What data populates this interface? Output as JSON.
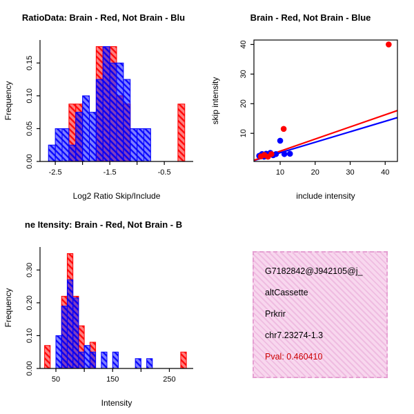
{
  "colors": {
    "red": "#ff0000",
    "blue": "#0000ff",
    "axis": "#000000",
    "pval_red": "#cc0000",
    "info_box_bg_light": "#f8d7ee",
    "info_box_bg_dark": "#efbce1",
    "info_box_border": "#e59fd2"
  },
  "chart_data": [
    {
      "type": "histogram",
      "title": "RatioData: Brain - Red, Not Brain - Blu",
      "xlabel": "Log2 Ratio Skip/Include",
      "ylabel": "Frequency",
      "xlim": [
        -2.78,
        0.03
      ],
      "ylim": [
        0,
        0.185
      ],
      "bin_width": 0.125,
      "xticks": [
        {
          "v": -2.5,
          "label": "-2.5"
        },
        {
          "v": -2.0,
          "label": ""
        },
        {
          "v": -1.5,
          "label": "-1.5"
        },
        {
          "v": -1.0,
          "label": ""
        },
        {
          "v": -0.5,
          "label": "-0.5"
        }
      ],
      "yticks": [
        {
          "v": 0,
          "label": "0.00"
        },
        {
          "v": 0.05,
          "label": "0.05"
        },
        {
          "v": 0.1,
          "label": "0.10"
        },
        {
          "v": 0.15,
          "label": "0.15"
        }
      ],
      "series": [
        {
          "name": "brain-red",
          "color_key": "red",
          "bars": [
            [
              -2.25,
              0.0875
            ],
            [
              -2.125,
              0.0875
            ],
            [
              -1.75,
              0.175
            ],
            [
              -1.625,
              0.175
            ],
            [
              -1.5,
              0.175
            ],
            [
              -1.375,
              0.1
            ],
            [
              -1.25,
              0.0875
            ],
            [
              -0.25,
              0.0875
            ]
          ]
        },
        {
          "name": "not-brain-blue",
          "color_key": "blue",
          "bars": [
            [
              -2.625,
              0.025
            ],
            [
              -2.5,
              0.05
            ],
            [
              -2.375,
              0.05
            ],
            [
              -2.25,
              0.025
            ],
            [
              -2.125,
              0.075
            ],
            [
              -2.0,
              0.1
            ],
            [
              -1.875,
              0.075
            ],
            [
              -1.75,
              0.125
            ],
            [
              -1.625,
              0.175
            ],
            [
              -1.5,
              0.15
            ],
            [
              -1.375,
              0.15
            ],
            [
              -1.25,
              0.125
            ],
            [
              -1.125,
              0.05
            ],
            [
              -1.0,
              0.05
            ],
            [
              -0.875,
              0.05
            ]
          ]
        }
      ]
    },
    {
      "type": "scatter",
      "title": "Brain - Red, Not Brain - Blue",
      "xlabel": "include intensity",
      "ylabel": "skip intensity",
      "xlim": [
        2.5,
        43.5
      ],
      "ylim": [
        0.5,
        41.5
      ],
      "xticks": [
        {
          "v": 10,
          "label": "10"
        },
        {
          "v": 20,
          "label": "20"
        },
        {
          "v": 30,
          "label": "30"
        },
        {
          "v": 40,
          "label": "40"
        }
      ],
      "yticks": [
        {
          "v": 10,
          "label": "10"
        },
        {
          "v": 20,
          "label": "20"
        },
        {
          "v": 30,
          "label": "30"
        },
        {
          "v": 40,
          "label": "40"
        }
      ],
      "series": [
        {
          "name": "not-brain-blue",
          "color_key": "blue",
          "points": [
            [
              4,
              2.4
            ],
            [
              4.8,
              3
            ],
            [
              5.4,
              2.1
            ],
            [
              6,
              3.1
            ],
            [
              6.6,
              2.5
            ],
            [
              7.2,
              3.4
            ],
            [
              8,
              2.6
            ],
            [
              8.8,
              3
            ],
            [
              10,
              7.5
            ],
            [
              11.2,
              3
            ],
            [
              12.8,
              3.1
            ]
          ],
          "line": [
            [
              2.5,
              0.8
            ],
            [
              43.5,
              15.3
            ]
          ]
        },
        {
          "name": "brain-red",
          "color_key": "red",
          "points": [
            [
              4.5,
              2.2
            ],
            [
              5.5,
              2.7
            ],
            [
              6.5,
              2.1
            ],
            [
              7.5,
              3
            ],
            [
              11,
              11.5
            ],
            [
              41,
              40
            ]
          ],
          "line": [
            [
              2.5,
              0.9
            ],
            [
              43.5,
              17.7
            ]
          ]
        }
      ]
    },
    {
      "type": "histogram",
      "title": "ne Itensity: Brain - Red, Not Brain - B",
      "xlabel": "Intensity",
      "ylabel": "Frequency",
      "xlim": [
        22,
        292
      ],
      "ylim": [
        0,
        0.37
      ],
      "bin_width": 10,
      "xticks": [
        {
          "v": 50,
          "label": "50"
        },
        {
          "v": 100,
          "label": ""
        },
        {
          "v": 150,
          "label": "150"
        },
        {
          "v": 200,
          "label": ""
        },
        {
          "v": 250,
          "label": "250"
        }
      ],
      "yticks": [
        {
          "v": 0,
          "label": "0.00"
        },
        {
          "v": 0.1,
          "label": "0.10"
        },
        {
          "v": 0.2,
          "label": "0.20"
        },
        {
          "v": 0.3,
          "label": "0.30"
        }
      ],
      "series": [
        {
          "name": "brain-red",
          "color_key": "red",
          "bars": [
            [
              30,
              0.07
            ],
            [
              60,
              0.22
            ],
            [
              70,
              0.35
            ],
            [
              80,
              0.22
            ],
            [
              90,
              0.13
            ],
            [
              110,
              0.08
            ],
            [
              270,
              0.05
            ]
          ]
        },
        {
          "name": "not-brain-blue",
          "color_key": "blue",
          "bars": [
            [
              50,
              0.1
            ],
            [
              60,
              0.19
            ],
            [
              70,
              0.27
            ],
            [
              80,
              0.215
            ],
            [
              90,
              0.05
            ],
            [
              100,
              0.07
            ],
            [
              110,
              0.05
            ],
            [
              130,
              0.05
            ],
            [
              150,
              0.05
            ],
            [
              190,
              0.03
            ],
            [
              210,
              0.03
            ]
          ]
        }
      ]
    }
  ],
  "info_box": {
    "lines": [
      {
        "text": "G7182842@J942105@j_",
        "style": "normal"
      },
      {
        "text": "altCassette",
        "style": "normal"
      },
      {
        "text": "Prkrir",
        "style": "normal"
      },
      {
        "text": "chr7.23274-1.3",
        "style": "normal"
      },
      {
        "text": "Pval: 0.460410",
        "style": "pval"
      }
    ]
  }
}
